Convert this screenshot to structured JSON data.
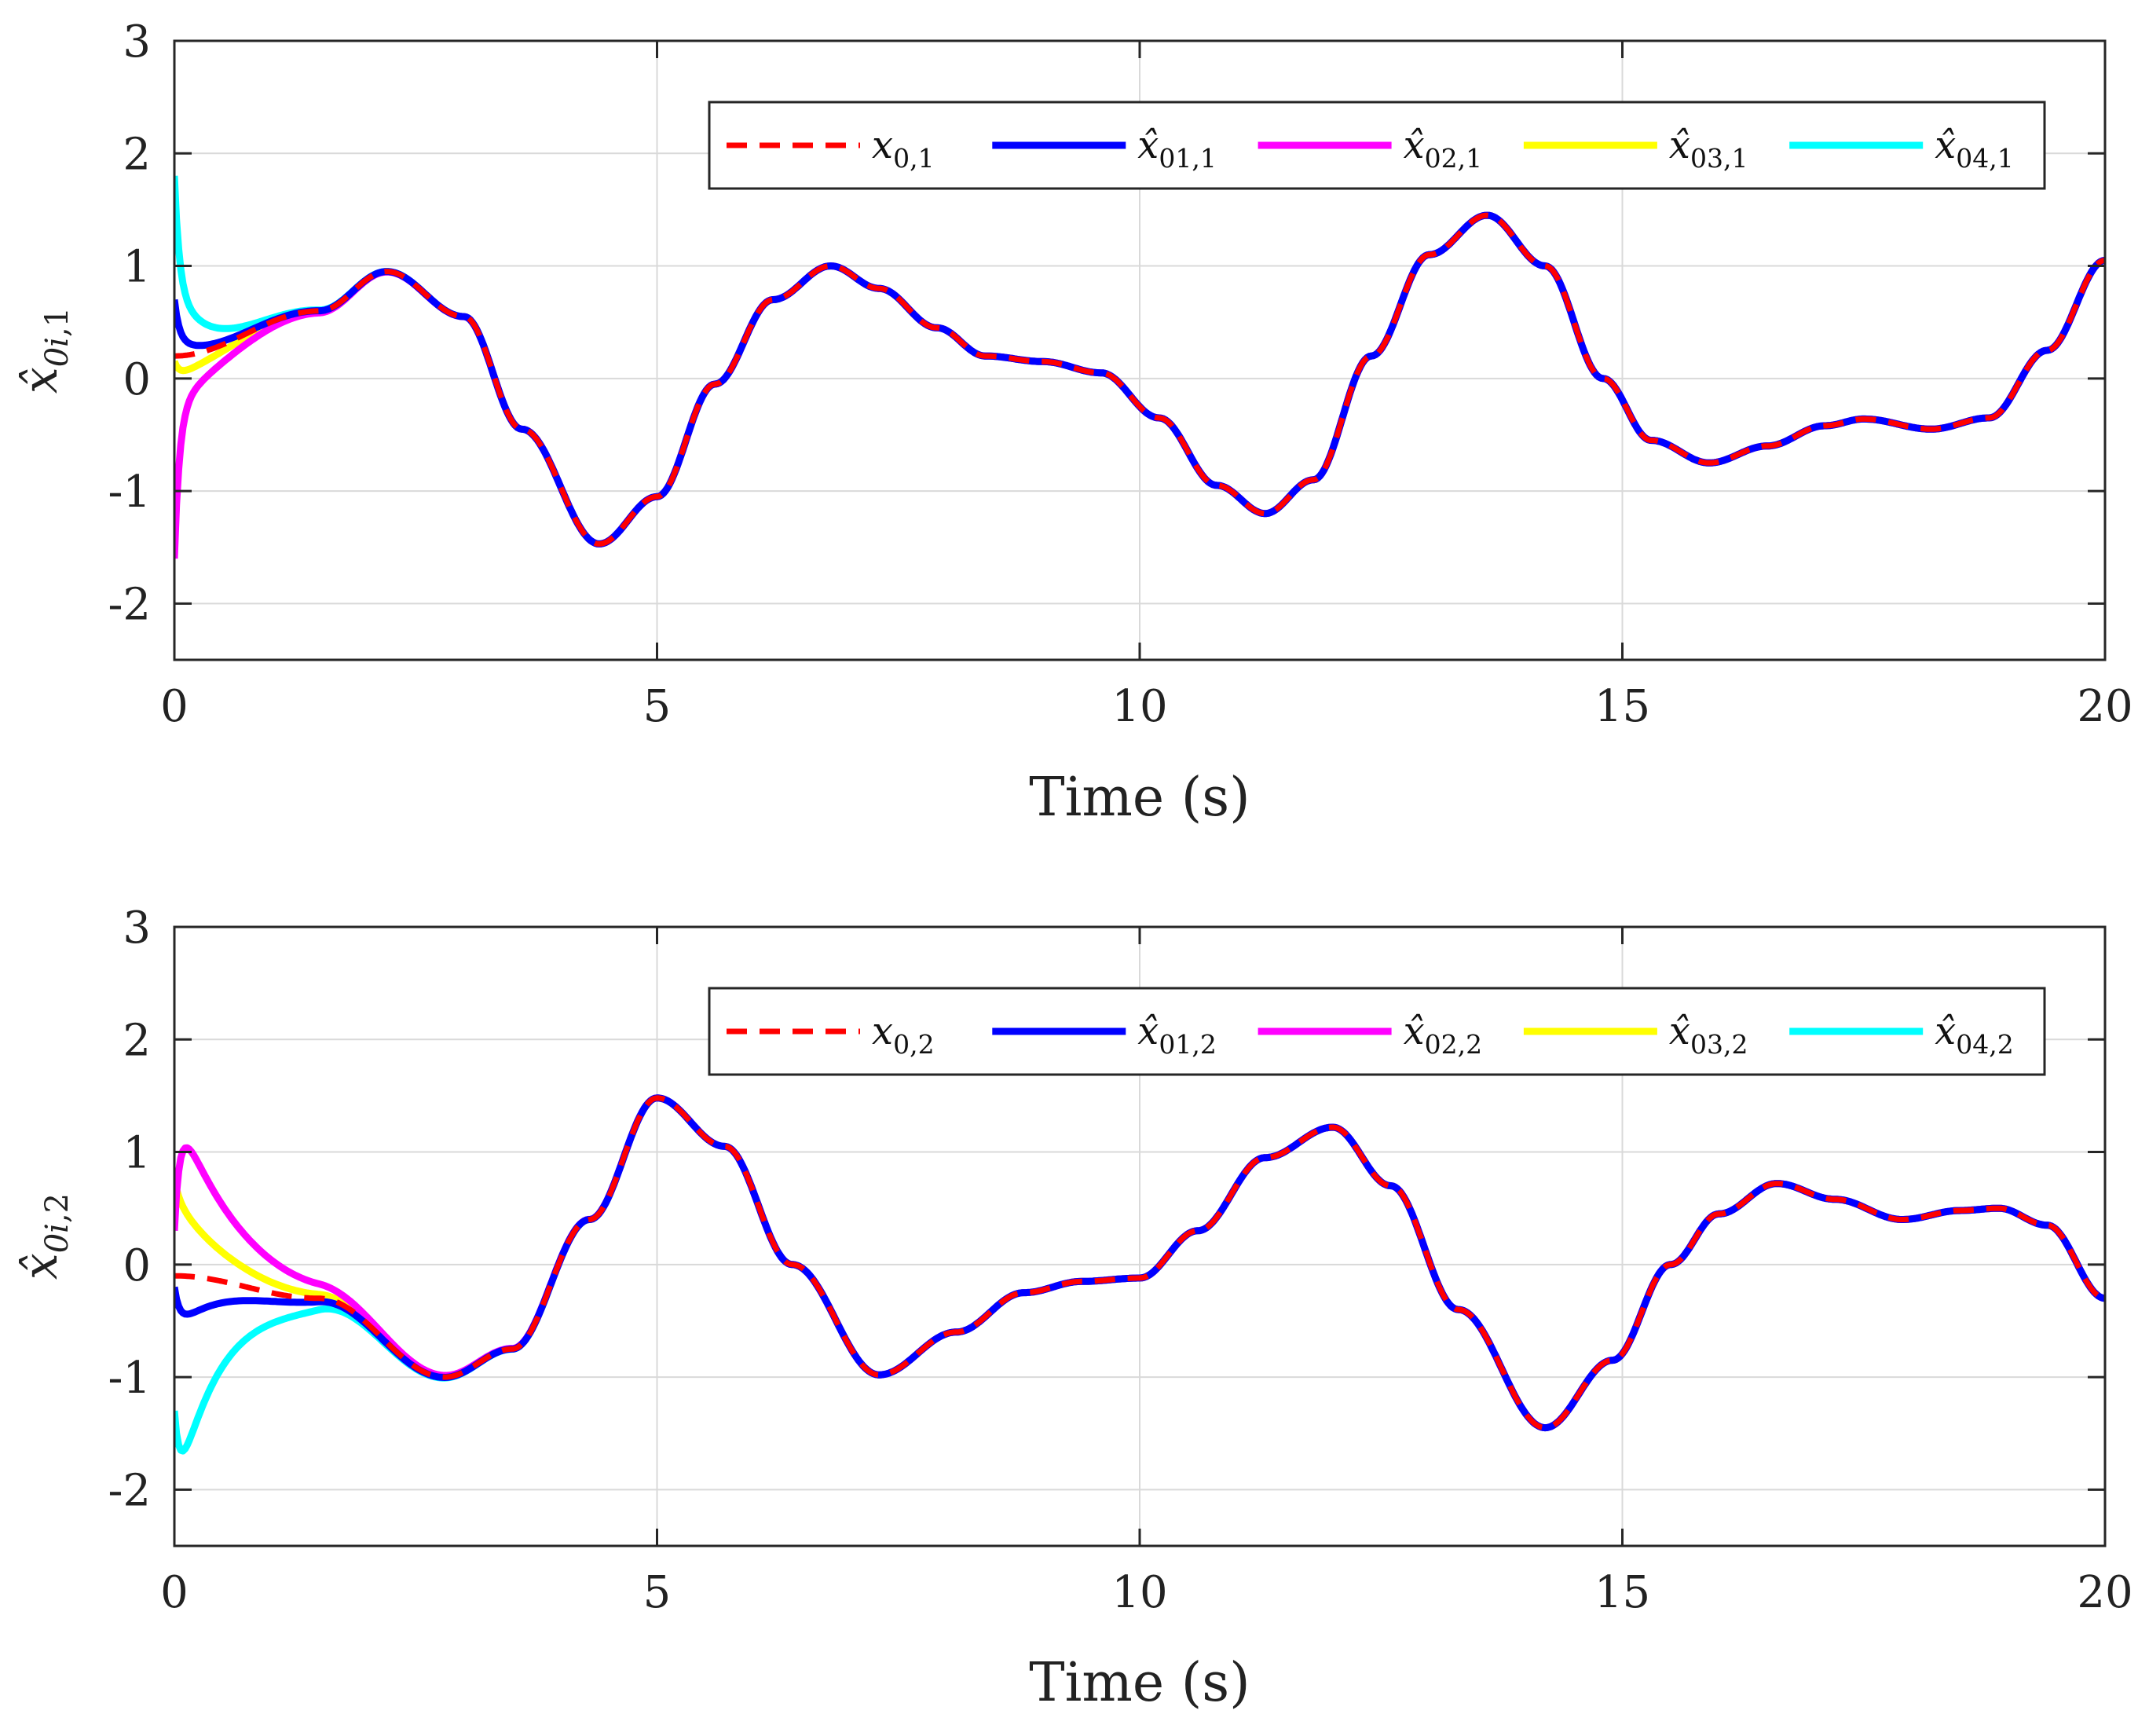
{
  "chart_data": [
    {
      "type": "line",
      "xlabel": "Time (s)",
      "ylabel": {
        "base": "x̂",
        "sub_i": "0i",
        "sub_n": "1"
      },
      "xlim": [
        0,
        20
      ],
      "ylim": [
        -2.5,
        3
      ],
      "xticks": [
        0,
        5,
        10,
        15,
        20
      ],
      "yticks": [
        -2,
        -1,
        0,
        1,
        2,
        3
      ],
      "grid": true,
      "legend_position": "top-right",
      "reference": {
        "t": [
          0,
          1.5,
          2.2,
          3.0,
          3.6,
          4.4,
          5.0,
          5.6,
          6.2,
          6.8,
          7.3,
          7.9,
          8.4,
          9.0,
          9.6,
          10.2,
          10.8,
          11.3,
          11.8,
          12.4,
          13.0,
          13.6,
          14.2,
          14.8,
          15.3,
          15.9,
          16.5,
          17.1,
          17.5,
          18.2,
          18.8,
          19.4,
          20.0
        ],
        "y": [
          0.2,
          0.6,
          0.95,
          0.55,
          -0.45,
          -1.47,
          -1.05,
          -0.05,
          0.7,
          1.0,
          0.8,
          0.45,
          0.2,
          0.15,
          0.05,
          -0.35,
          -0.95,
          -1.2,
          -0.9,
          0.2,
          1.1,
          1.45,
          1.0,
          0.0,
          -0.55,
          -0.75,
          -0.6,
          -0.42,
          -0.36,
          -0.45,
          -0.35,
          0.25,
          1.05
        ]
      },
      "series": [
        {
          "name": "x",
          "sub": "0,1",
          "color": "#ff0000",
          "dash": true,
          "y0": 0.2,
          "knee": 0.2,
          "tc": 0.8
        },
        {
          "name": "x̂",
          "sub": "01,1",
          "color": "#0000ff",
          "dash": false,
          "y0": 0.7,
          "knee": 0.33,
          "tc": 0.35
        },
        {
          "name": "x̂",
          "sub": "02,1",
          "color": "#ff00ff",
          "dash": false,
          "y0": -1.6,
          "knee": -0.28,
          "tc": 0.45
        },
        {
          "name": "x̂",
          "sub": "03,1",
          "color": "#ffff00",
          "dash": false,
          "y0": 0.15,
          "knee": 0.0,
          "tc": 0.4
        },
        {
          "name": "x̂",
          "sub": "04,1",
          "color": "#00ffff",
          "dash": false,
          "y0": 1.8,
          "knee": 0.8,
          "tc": 0.35
        }
      ]
    },
    {
      "type": "line",
      "xlabel": "Time (s)",
      "ylabel": {
        "base": "x̂",
        "sub_i": "0i",
        "sub_n": "2"
      },
      "xlim": [
        0,
        20
      ],
      "ylim": [
        -2.5,
        3
      ],
      "xticks": [
        0,
        5,
        10,
        15,
        20
      ],
      "yticks": [
        -2,
        -1,
        0,
        1,
        2,
        3
      ],
      "grid": true,
      "legend_position": "top-right",
      "reference": {
        "t": [
          0,
          1.5,
          2.8,
          3.5,
          4.3,
          5.0,
          5.7,
          6.4,
          7.3,
          8.1,
          8.8,
          9.4,
          10.0,
          10.6,
          11.3,
          12.0,
          12.6,
          13.3,
          14.2,
          14.9,
          15.5,
          16.0,
          16.6,
          17.2,
          17.9,
          18.5,
          18.9,
          19.4,
          20.0
        ],
        "y": [
          -0.1,
          -0.3,
          -1.0,
          -0.75,
          0.4,
          1.48,
          1.05,
          0.0,
          -0.98,
          -0.6,
          -0.25,
          -0.15,
          -0.12,
          0.3,
          0.95,
          1.22,
          0.7,
          -0.4,
          -1.45,
          -0.85,
          0.0,
          0.45,
          0.72,
          0.58,
          0.4,
          0.48,
          0.5,
          0.35,
          -0.3
        ]
      },
      "series": [
        {
          "name": "x",
          "sub": "0,2",
          "color": "#ff0000",
          "dash": true,
          "y0": -0.1,
          "knee": -0.1,
          "tc": 0.9
        },
        {
          "name": "x̂",
          "sub": "01,2",
          "color": "#0000ff",
          "dash": false,
          "y0": -0.2,
          "knee": -0.57,
          "tc": 0.55
        },
        {
          "name": "x̂",
          "sub": "02,2",
          "color": "#ff00ff",
          "dash": false,
          "y0": 0.3,
          "knee": 1.45,
          "tc": 0.6
        },
        {
          "name": "x̂",
          "sub": "03,2",
          "color": "#ffff00",
          "dash": false,
          "y0": 0.75,
          "knee": 0.6,
          "tc": 0.5
        },
        {
          "name": "x̂",
          "sub": "04,2",
          "color": "#00ffff",
          "dash": false,
          "y0": -1.3,
          "knee": -2.15,
          "tc": 0.5
        }
      ]
    }
  ]
}
